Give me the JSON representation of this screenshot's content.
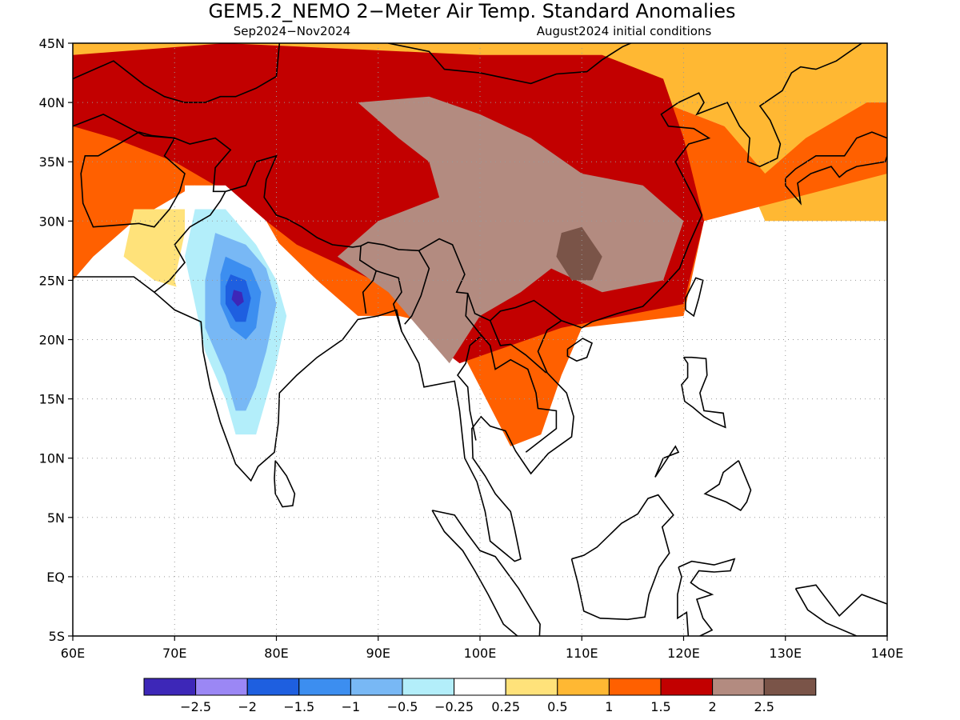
{
  "title": "GEM5.2_NEMO 2−Meter Air Temp. Standard Anomalies",
  "subtitle_left": "Sep2024−Nov2024",
  "subtitle_right": "August2024 initial conditions",
  "axes": {
    "lon_labels": [
      "60E",
      "70E",
      "80E",
      "90E",
      "100E",
      "110E",
      "120E",
      "130E",
      "140E"
    ],
    "lat_labels": [
      "45N",
      "40N",
      "35N",
      "30N",
      "25N",
      "20N",
      "15N",
      "10N",
      "5N",
      "EQ",
      "5S"
    ],
    "lon_range": [
      60,
      140
    ],
    "lat_range": [
      -5,
      45
    ],
    "grid": "dotted"
  },
  "legend": {
    "placement": "bottom-center",
    "colors": [
      "#3d27b8",
      "#9b87f5",
      "#1e5fe0",
      "#3c8ef0",
      "#78b8f5",
      "#b3eefa",
      "#ffffff",
      "#ffe27a",
      "#ffb833",
      "#ff6000",
      "#c20000",
      "#b38b80",
      "#7a5448"
    ],
    "labels": [
      "−2.5",
      "−2",
      "−1.5",
      "−1",
      "−0.5",
      "−0.25",
      "0.25",
      "0.5",
      "1",
      "1.5",
      "2",
      "2.5"
    ]
  },
  "anomaly_regions": [
    {
      "level": 0.5,
      "poly": [
        [
          60,
          45
        ],
        [
          140,
          45
        ],
        [
          140,
          30
        ],
        [
          128,
          30
        ],
        [
          124,
          38
        ],
        [
          118,
          40
        ],
        [
          112,
          44
        ],
        [
          60,
          44
        ]
      ]
    },
    {
      "level": 1,
      "poly": [
        [
          60,
          44
        ],
        [
          112,
          44
        ],
        [
          118,
          40
        ],
        [
          124,
          38
        ],
        [
          128,
          34
        ],
        [
          132,
          37
        ],
        [
          138,
          40
        ],
        [
          140,
          40
        ],
        [
          140,
          34
        ],
        [
          122,
          30
        ],
        [
          120,
          22
        ],
        [
          110,
          21
        ],
        [
          108,
          17
        ],
        [
          106,
          12
        ],
        [
          103,
          11
        ],
        [
          100,
          16
        ],
        [
          97,
          21
        ],
        [
          92,
          22
        ],
        [
          88,
          22
        ],
        [
          84,
          25
        ],
        [
          78,
          30
        ],
        [
          72,
          33
        ],
        [
          66,
          30
        ],
        [
          62,
          27
        ],
        [
          60,
          25
        ]
      ]
    },
    {
      "level": 1.5,
      "poly": [
        [
          60,
          44
        ],
        [
          75,
          45
        ],
        [
          100,
          44
        ],
        [
          112,
          44
        ],
        [
          118,
          42
        ],
        [
          120,
          37
        ],
        [
          122,
          30
        ],
        [
          120,
          23
        ],
        [
          108,
          21
        ],
        [
          98,
          18
        ],
        [
          95,
          20
        ],
        [
          92,
          24
        ],
        [
          82,
          28
        ],
        [
          76,
          32
        ],
        [
          70,
          35
        ],
        [
          64,
          37
        ],
        [
          60,
          38
        ]
      ]
    },
    {
      "level": 2,
      "poly": [
        [
          88,
          40
        ],
        [
          95,
          40.5
        ],
        [
          100,
          39
        ],
        [
          105,
          37
        ],
        [
          110,
          34
        ],
        [
          116,
          33
        ],
        [
          120,
          30
        ],
        [
          118,
          25
        ],
        [
          112,
          24
        ],
        [
          107,
          26
        ],
        [
          104,
          24
        ],
        [
          100,
          22
        ],
        [
          97,
          18
        ],
        [
          94,
          21
        ],
        [
          91,
          24
        ],
        [
          86,
          27
        ],
        [
          90,
          30
        ],
        [
          96,
          32
        ],
        [
          95,
          35
        ],
        [
          92,
          37
        ]
      ]
    },
    {
      "level": 2.5,
      "poly": [
        [
          108,
          29
        ],
        [
          110,
          29.5
        ],
        [
          112,
          27
        ],
        [
          111,
          25
        ],
        [
          109,
          25
        ],
        [
          107.5,
          27
        ]
      ]
    },
    {
      "level": 0.25,
      "poly": [
        [
          66,
          31
        ],
        [
          72,
          31
        ],
        [
          74,
          28
        ],
        [
          72,
          24
        ],
        [
          68,
          25
        ],
        [
          65,
          27
        ]
      ]
    },
    {
      "level": -0.25,
      "poly": [
        [
          71,
          33
        ],
        [
          75,
          33
        ],
        [
          79,
          30
        ],
        [
          81,
          27
        ],
        [
          82,
          24
        ],
        [
          82,
          20
        ],
        [
          81,
          17
        ],
        [
          80,
          14
        ],
        [
          79,
          11
        ],
        [
          77,
          9
        ],
        [
          76,
          11
        ],
        [
          74,
          15
        ],
        [
          73,
          19
        ],
        [
          71,
          22
        ],
        [
          70,
          25
        ],
        [
          71,
          29
        ]
      ]
    },
    {
      "level": -0.5,
      "poly": [
        [
          72,
          31
        ],
        [
          75,
          31
        ],
        [
          78,
          28
        ],
        [
          80,
          25
        ],
        [
          81,
          22
        ],
        [
          80,
          18
        ],
        [
          79,
          15
        ],
        [
          78,
          12
        ],
        [
          76,
          12
        ],
        [
          75,
          15
        ],
        [
          73,
          19
        ],
        [
          72,
          23
        ],
        [
          71,
          27
        ]
      ]
    },
    {
      "level": -1,
      "poly": [
        [
          74,
          29
        ],
        [
          77,
          28
        ],
        [
          79,
          26
        ],
        [
          80,
          23
        ],
        [
          79,
          19
        ],
        [
          78,
          16
        ],
        [
          77,
          14
        ],
        [
          76,
          14
        ],
        [
          75,
          17
        ],
        [
          73,
          21
        ],
        [
          73,
          25
        ]
      ]
    },
    {
      "level": -1.5,
      "poly": [
        [
          75,
          27
        ],
        [
          77.5,
          26
        ],
        [
          78.5,
          24
        ],
        [
          78,
          21
        ],
        [
          77,
          20
        ],
        [
          75.5,
          21
        ],
        [
          74.5,
          23
        ],
        [
          74.5,
          25.5
        ]
      ]
    },
    {
      "level": -2,
      "poly": [
        [
          75.5,
          25.5
        ],
        [
          77,
          25
        ],
        [
          77.5,
          23.5
        ],
        [
          77,
          21.5
        ],
        [
          76,
          21.5
        ],
        [
          75,
          23
        ],
        [
          75,
          24.5
        ]
      ]
    },
    {
      "level": -2.5,
      "poly": [
        [
          75.8,
          24.2
        ],
        [
          76.6,
          24
        ],
        [
          76.8,
          23.2
        ],
        [
          76.2,
          22.8
        ],
        [
          75.6,
          23.4
        ]
      ]
    }
  ]
}
